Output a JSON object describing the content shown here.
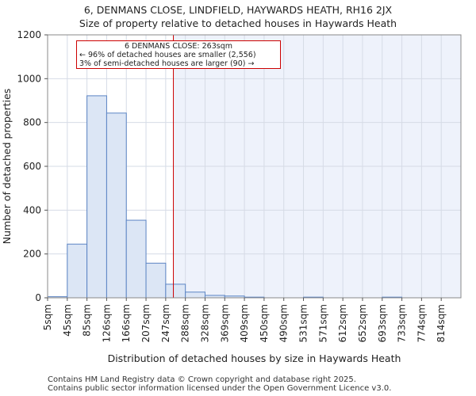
{
  "title_line1": "6, DENMANS CLOSE, LINDFIELD, HAYWARDS HEATH, RH16 2JX",
  "title_line2": "Size of property relative to detached houses in Haywards Heath",
  "annotation": {
    "line1": "6 DENMANS CLOSE: 263sqm",
    "line2": "← 96% of detached houses are smaller (2,556)",
    "line3": "3% of semi-detached houses are larger (90) →"
  },
  "footer_line1": "Contains HM Land Registry data © Crown copyright and database right 2025.",
  "footer_line2": "Contains public sector information licensed under the Open Government Licence v3.0.",
  "chart_data": {
    "type": "bar",
    "title": "Size of property relative to detached houses in Haywards Heath",
    "xlabel": "Distribution of detached houses by size in Haywards Heath",
    "ylabel": "Number of detached properties",
    "categories": [
      "5sqm",
      "45sqm",
      "85sqm",
      "126sqm",
      "166sqm",
      "207sqm",
      "247sqm",
      "288sqm",
      "328sqm",
      "369sqm",
      "409sqm",
      "450sqm",
      "490sqm",
      "531sqm",
      "571sqm",
      "612sqm",
      "652sqm",
      "693sqm",
      "733sqm",
      "774sqm",
      "814sqm"
    ],
    "values": [
      5,
      245,
      922,
      843,
      354,
      158,
      62,
      26,
      11,
      8,
      3,
      0,
      0,
      3,
      0,
      0,
      0,
      3,
      0,
      0,
      0
    ],
    "ylim": [
      0,
      1200
    ],
    "yticks": [
      0,
      200,
      400,
      600,
      800,
      1000,
      1200
    ],
    "property_marker": {
      "value_sqm": 263,
      "label": "6 DENMANS CLOSE: 263sqm"
    },
    "colors": {
      "bar_fill": "#dce6f5",
      "bar_stroke": "#5b84c4",
      "marker": "#cc0000",
      "shade": "#eef2fb"
    }
  }
}
